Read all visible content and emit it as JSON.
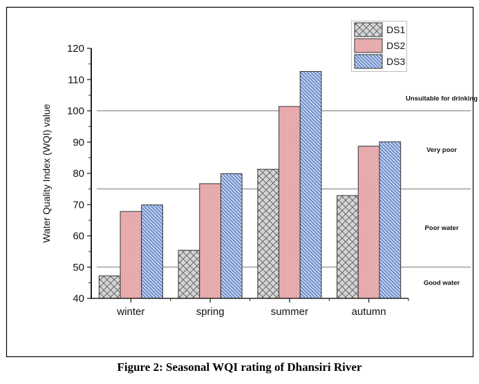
{
  "caption": "Figure 2: Seasonal WQI rating of Dhansiri River",
  "chart_data": {
    "type": "bar",
    "title": "",
    "xlabel": "",
    "ylabel": "Water Quality Index (WQI) value",
    "ylim": [
      40,
      120
    ],
    "yticks": [
      40,
      50,
      60,
      70,
      80,
      90,
      100,
      110,
      120
    ],
    "grid": false,
    "legend_position": "top-right",
    "categories": [
      "winter",
      "spring",
      "summer",
      "autumn"
    ],
    "series": [
      {
        "name": "DS1",
        "values": [
          47.2,
          55.4,
          81.3,
          72.9
        ],
        "color": "#d4d4d4",
        "pattern": "crosshatch"
      },
      {
        "name": "DS2",
        "values": [
          67.8,
          76.7,
          101.4,
          88.7
        ],
        "color": "#e8a8aa",
        "pattern": "fine-grid"
      },
      {
        "name": "DS3",
        "values": [
          69.9,
          79.9,
          112.6,
          90.1
        ],
        "color": "#a9c4ef",
        "pattern": "diagonal"
      }
    ],
    "reference_lines": [
      {
        "value": 50,
        "label": "Good water"
      },
      {
        "value": 75,
        "label": "Poor water"
      },
      {
        "value": 100,
        "label": "Very poor"
      }
    ],
    "zone_labels": [
      {
        "label": "Unsuitable for drinking",
        "value": 104
      },
      {
        "label": "Very poor",
        "value": 87.5
      },
      {
        "label": "Poor water",
        "value": 62.5
      },
      {
        "label": "Good water",
        "value": 45
      }
    ]
  }
}
